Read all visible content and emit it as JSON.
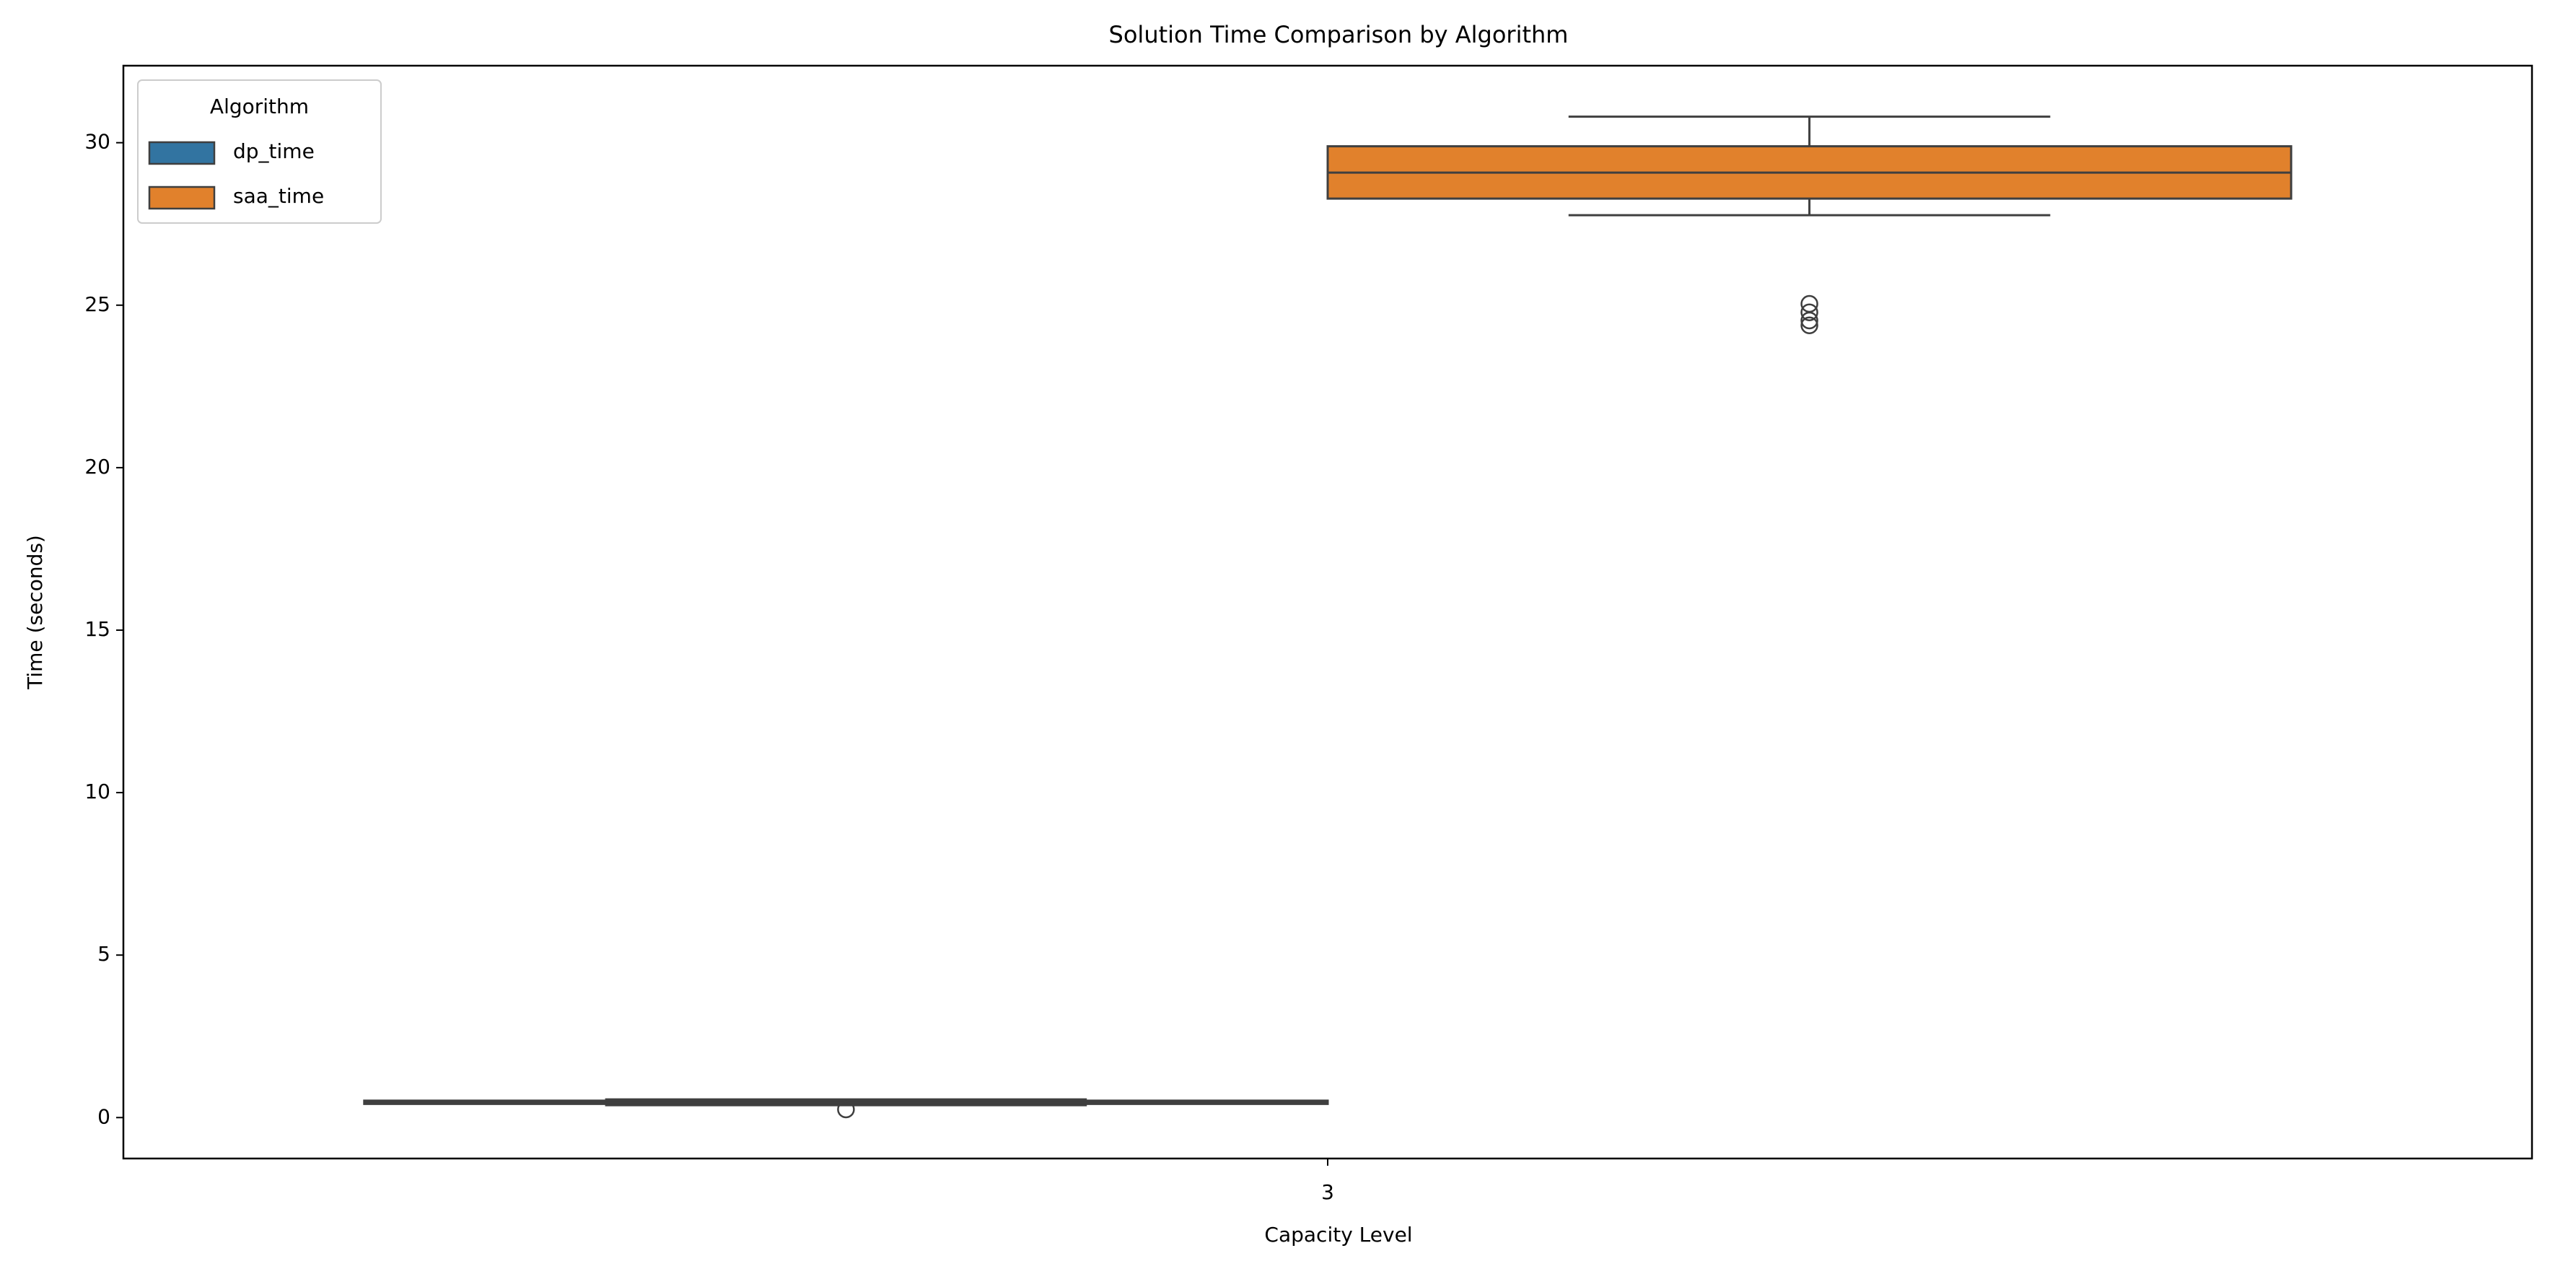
{
  "chart_data": {
    "type": "box",
    "title": "Solution Time Comparison by Algorithm",
    "x_label": "Capacity Level",
    "y_label": "Time (seconds)",
    "categories": [
      "3"
    ],
    "legend_title": "Algorithm",
    "legend_position": "upper left",
    "ylim": [
      -1.26,
      32.37
    ],
    "yticks": [
      0,
      5,
      10,
      15,
      20,
      25,
      30
    ],
    "series": [
      {
        "name": "dp_time",
        "color": "#3274a1",
        "values": [
          {
            "whislo": 0.38,
            "q1": 0.42,
            "med": 0.47,
            "q3": 0.52,
            "whishi": 0.56,
            "fliers": [
              0.25
            ]
          }
        ]
      },
      {
        "name": "saa_time",
        "color": "#e1812c",
        "values": [
          {
            "whislo": 27.77,
            "q1": 28.28,
            "med": 29.08,
            "q3": 29.89,
            "whishi": 30.8,
            "fliers": [
              25.04,
              24.78,
              24.53,
              24.38
            ]
          }
        ]
      }
    ]
  }
}
